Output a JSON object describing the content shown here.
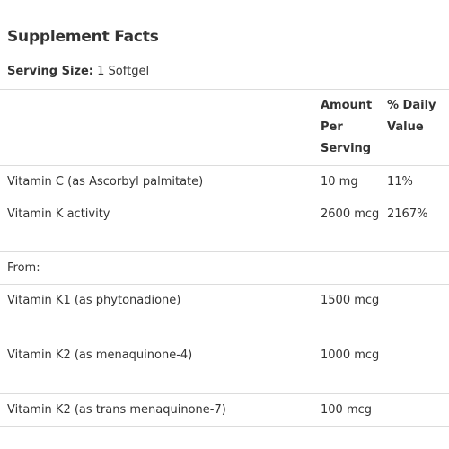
{
  "title": "Supplement Facts",
  "serving": {
    "label": "Serving Size:",
    "value": "1 Softgel"
  },
  "columns": {
    "amount_line1": "Amount",
    "amount_line2": "Per",
    "amount_line3": "Serving",
    "dv_line1": "% Daily",
    "dv_line2": "Value"
  },
  "rows": [
    {
      "name": "Vitamin C (as Ascorbyl palmitate)",
      "amount": "10 mg",
      "dv": "11%"
    },
    {
      "name": "Vitamin K activity",
      "amount": "2600 mcg",
      "dv": "2167%"
    },
    {
      "name": "From:",
      "amount": "",
      "dv": ""
    },
    {
      "name": "Vitamin K1 (as phytonadione)",
      "amount": "1500 mcg",
      "dv": ""
    },
    {
      "name": "Vitamin K2 (as menaquinone-4)",
      "amount": "1000 mcg",
      "dv": ""
    },
    {
      "name": "Vitamin K2 (as trans menaquinone-7)",
      "amount": "100 mcg",
      "dv": ""
    }
  ]
}
